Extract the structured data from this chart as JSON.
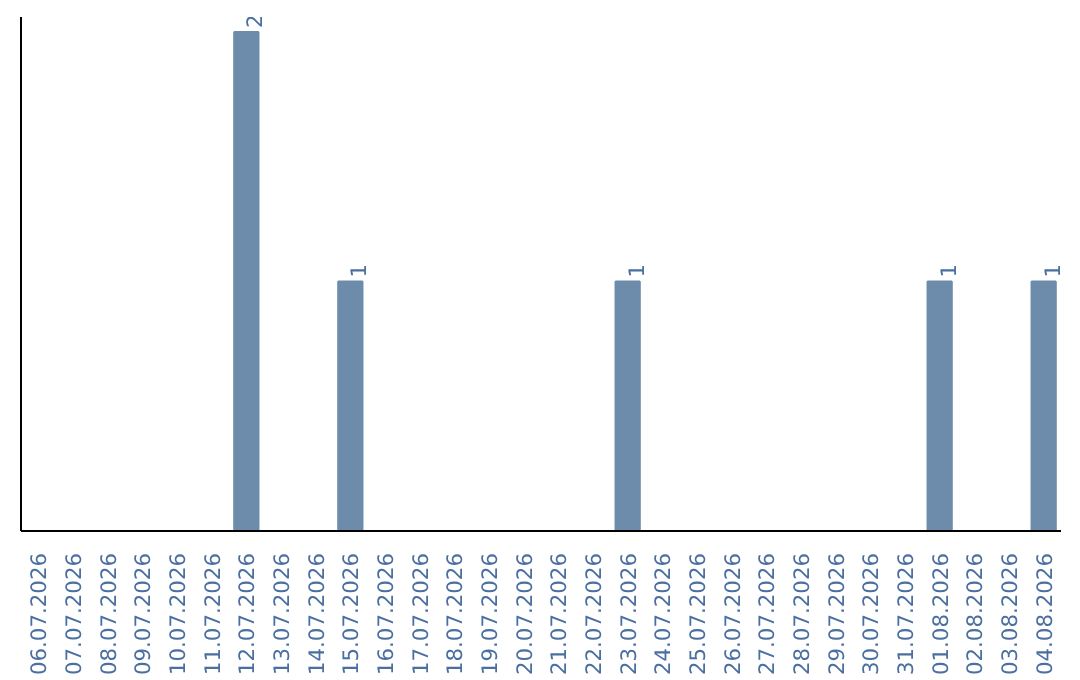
{
  "chart_data": {
    "type": "bar",
    "categories": [
      "06.07.2026",
      "07.07.2026",
      "08.07.2026",
      "09.07.2026",
      "10.07.2026",
      "11.07.2026",
      "12.07.2026",
      "13.07.2026",
      "14.07.2026",
      "15.07.2026",
      "16.07.2026",
      "17.07.2026",
      "18.07.2026",
      "19.07.2026",
      "20.07.2026",
      "21.07.2026",
      "22.07.2026",
      "23.07.2026",
      "24.07.2026",
      "25.07.2026",
      "26.07.2026",
      "27.07.2026",
      "28.07.2026",
      "29.07.2026",
      "30.07.2026",
      "31.07.2026",
      "01.08.2026",
      "02.08.2026",
      "03.08.2026",
      "04.08.2026"
    ],
    "values": [
      0,
      0,
      0,
      0,
      0,
      0,
      2,
      0,
      0,
      1,
      0,
      0,
      0,
      0,
      0,
      0,
      0,
      1,
      0,
      0,
      0,
      0,
      0,
      0,
      0,
      0,
      1,
      0,
      0,
      1
    ],
    "value_labels": [
      null,
      null,
      null,
      null,
      null,
      null,
      "2",
      null,
      null,
      "1",
      null,
      null,
      null,
      null,
      null,
      null,
      null,
      "1",
      null,
      null,
      null,
      null,
      null,
      null,
      null,
      null,
      "1",
      null,
      null,
      "1"
    ],
    "color": "#6d8cab"
  }
}
